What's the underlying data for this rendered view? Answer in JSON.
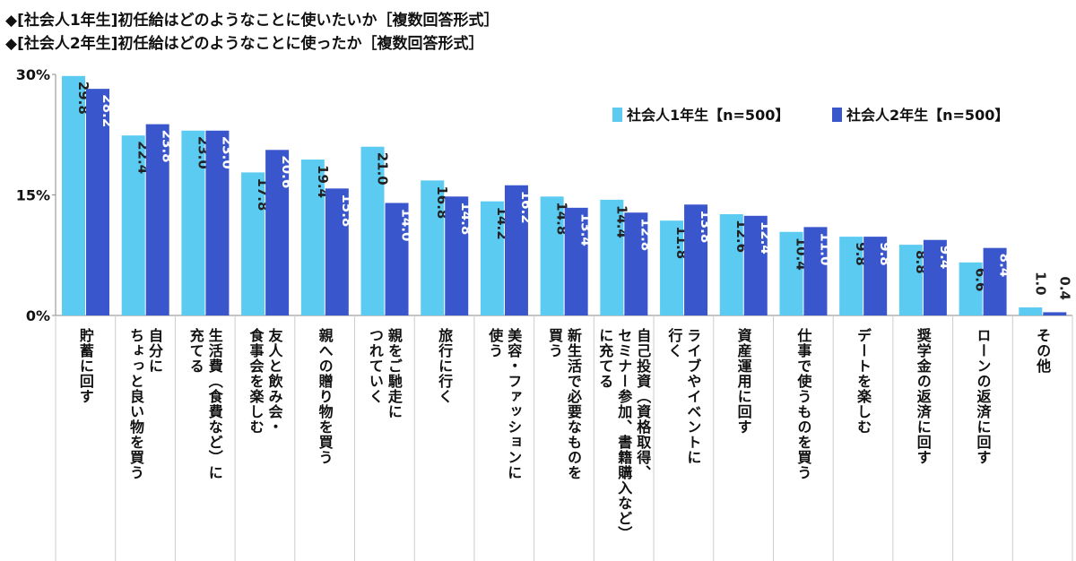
{
  "chart_data": {
    "type": "bar",
    "titles": [
      "◆[社会人1年生]初任給はどのようなことに使いたいか［複数回答形式］",
      "◆[社会人2年生]初任給はどのようなことに使ったか［複数回答形式］"
    ],
    "categories": [
      "貯蓄に回す",
      "自分に\nちょっと良い物を買う",
      "生活費（食費など）に\n充てる",
      "友人と飲み会・\n食事会を楽しむ",
      "親への贈り物を買う",
      "親をご馳走に\nつれていく",
      "旅行に行く",
      "美容・ファッションに\n使う",
      "新生活で必要なものを\n買う",
      "自己投資（資格取得、\nセミナー参加、書籍購入など）\nに充てる",
      "ライブやイベントに\n行く",
      "資産運用に回す",
      "仕事で使うものを買う",
      "デートを楽しむ",
      "奨学金の返済に回す",
      "ローンの返済に回す",
      "その他"
    ],
    "series": [
      {
        "name": "社会人1年生【n=500】",
        "color": "#5ccbf2",
        "values": [
          29.8,
          22.4,
          23.0,
          17.8,
          19.4,
          21.0,
          16.8,
          14.2,
          14.8,
          14.4,
          11.8,
          12.6,
          10.4,
          9.8,
          8.8,
          6.6,
          1.0
        ],
        "value_labels": [
          "29.8",
          "22.4",
          "23.0",
          "17.8",
          "19.4",
          "21.0",
          "16.8",
          "14.2",
          "14.8",
          "14.4",
          "11.8",
          "12.6",
          "10.4",
          "9.8",
          "8.8",
          "6.6",
          "1.0"
        ]
      },
      {
        "name": "社会人2年生【n=500】",
        "color": "#3a56cc",
        "values": [
          28.2,
          23.8,
          23.0,
          20.6,
          15.8,
          14.0,
          14.8,
          16.2,
          13.4,
          12.8,
          13.8,
          12.4,
          11.0,
          9.8,
          9.4,
          8.4,
          0.4
        ],
        "value_labels": [
          "28.2",
          "23.8",
          "23.0",
          "20.6",
          "15.8",
          "14.0",
          "14.8",
          "16.2",
          "13.4",
          "12.8",
          "13.8",
          "12.4",
          "11.0",
          "9.8",
          "9.4",
          "8.4",
          "0.4"
        ]
      }
    ],
    "ylim": [
      0,
      30
    ],
    "yticks": [
      {
        "value": 0,
        "label": "0%"
      },
      {
        "value": 15,
        "label": "15%"
      },
      {
        "value": 30,
        "label": "30%"
      }
    ]
  }
}
